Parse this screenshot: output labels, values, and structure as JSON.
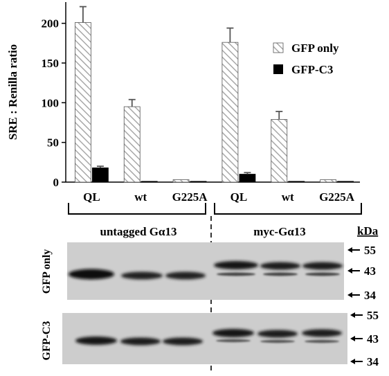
{
  "chart_data": {
    "type": "bar",
    "ylabel": "SRE : Renilla ratio",
    "ylim": [
      0,
      225
    ],
    "yticks": [
      "0",
      "50",
      "100",
      "150",
      "200"
    ],
    "categories": [
      "QL",
      "wt",
      "G225A",
      "QL",
      "wt",
      "G225A"
    ],
    "groups": [
      "untagged Gα13",
      "myc-Gα13"
    ],
    "series": [
      {
        "name": "GFP only",
        "pattern": "hatched",
        "values": [
          201,
          95,
          3,
          176,
          79,
          3
        ],
        "errors": [
          20,
          9,
          0,
          18,
          10,
          0
        ]
      },
      {
        "name": "GFP-C3",
        "pattern": "solid",
        "values": [
          18,
          1,
          1,
          10,
          1,
          1
        ],
        "errors": [
          2,
          0,
          0,
          2,
          0,
          0
        ]
      }
    ],
    "legend_position": "top-right"
  },
  "colors": {
    "hatch": "#a8a8a8",
    "solid": "#000000",
    "blot_bg": "#cfcfcf",
    "band": "#1c1c1c"
  },
  "blots": {
    "unit": "kDa",
    "rows": [
      {
        "label": "GFP only",
        "markers": [
          "55",
          "43",
          "34"
        ]
      },
      {
        "label": "GFP-C3",
        "markers": [
          "55",
          "43",
          "34"
        ]
      }
    ]
  }
}
